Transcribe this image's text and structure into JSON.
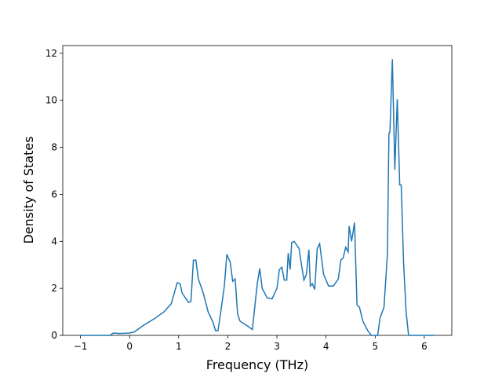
{
  "chart_data": {
    "type": "line",
    "xlabel": "Frequency (THz)",
    "ylabel": "Density of States",
    "x": [
      -1,
      -0.4,
      -0.33,
      -0.2,
      0,
      0.1,
      0.2,
      0.3,
      0.5,
      0.7,
      0.85,
      0.97,
      1.03,
      1.07,
      1.2,
      1.25,
      1.3,
      1.35,
      1.4,
      1.5,
      1.6,
      1.7,
      1.75,
      1.8,
      1.85,
      1.93,
      1.98,
      2.05,
      2.1,
      2.15,
      2.2,
      2.25,
      2.4,
      2.5,
      2.6,
      2.65,
      2.7,
      2.8,
      2.9,
      3.0,
      3.05,
      3.1,
      3.15,
      3.2,
      3.23,
      3.27,
      3.3,
      3.35,
      3.45,
      3.5,
      3.55,
      3.6,
      3.65,
      3.68,
      3.72,
      3.77,
      3.82,
      3.87,
      3.95,
      4.05,
      4.15,
      4.25,
      4.3,
      4.35,
      4.4,
      4.45,
      4.47,
      4.52,
      4.58,
      4.63,
      4.68,
      4.75,
      4.85,
      4.92,
      5.05,
      5.1,
      5.18,
      5.25,
      5.28,
      5.3,
      5.35,
      5.4,
      5.45,
      5.5,
      5.53,
      5.58,
      5.63,
      5.68,
      6.2
    ],
    "series": [
      {
        "name": "DOS",
        "color": "#1f77b4",
        "values": [
          0,
          0,
          0.1,
          0.08,
          0.1,
          0.15,
          0.3,
          0.45,
          0.7,
          1.0,
          1.35,
          2.24,
          2.2,
          1.8,
          1.4,
          1.45,
          3.2,
          3.2,
          2.4,
          1.8,
          1.0,
          0.55,
          0.2,
          0.2,
          0.9,
          2.1,
          3.45,
          3.1,
          2.3,
          2.4,
          0.9,
          0.6,
          0.4,
          0.25,
          2.2,
          2.85,
          2.0,
          1.6,
          1.55,
          2.0,
          2.8,
          2.9,
          2.35,
          2.35,
          3.5,
          2.8,
          3.95,
          4.0,
          3.7,
          3.0,
          2.35,
          2.6,
          3.65,
          2.1,
          2.2,
          1.95,
          3.7,
          3.9,
          2.6,
          2.1,
          2.1,
          2.4,
          3.2,
          3.3,
          3.75,
          3.55,
          4.65,
          4.0,
          4.8,
          1.3,
          1.2,
          0.6,
          0.2,
          0,
          0,
          0.75,
          1.2,
          3.5,
          8.6,
          8.65,
          11.75,
          7.05,
          10.05,
          6.4,
          6.4,
          3.0,
          1.0,
          0,
          0
        ]
      }
    ],
    "xlim": [
      -1.36,
      6.56
    ],
    "ylim": [
      0,
      12.33
    ],
    "xticks": [
      {
        "value": -1,
        "label": "−1"
      },
      0,
      1,
      2,
      3,
      4,
      5,
      6
    ],
    "yticks": [
      0,
      2,
      4,
      6,
      8,
      10,
      12
    ]
  }
}
